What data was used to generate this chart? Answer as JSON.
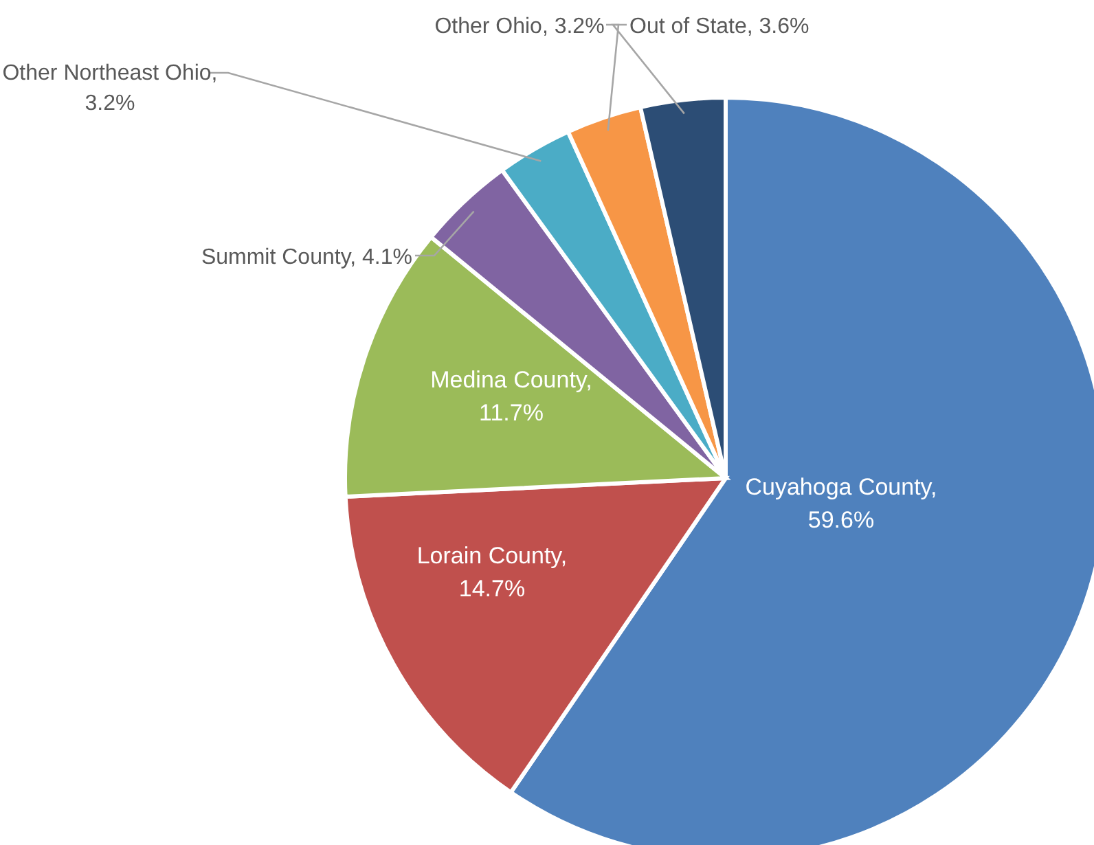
{
  "chart_data": {
    "type": "pie",
    "categories": [
      "Cuyahoga County",
      "Lorain County",
      "Medina County",
      "Summit County",
      "Other Northeast Ohio",
      "Other Ohio",
      "Out of State"
    ],
    "values": [
      59.6,
      14.7,
      11.7,
      4.1,
      3.2,
      3.2,
      3.6
    ],
    "colors": [
      "#4f81bd",
      "#c0504d",
      "#9bbb59",
      "#8064a2",
      "#4bacc6",
      "#f79646",
      "#2c4d75"
    ],
    "value_labels": [
      ",\n59.6%",
      ",\n14.7%",
      ",\n11.7%",
      ", 4.1%",
      ",\n3.2%",
      ", 3.2%",
      ", 3.6%"
    ]
  }
}
